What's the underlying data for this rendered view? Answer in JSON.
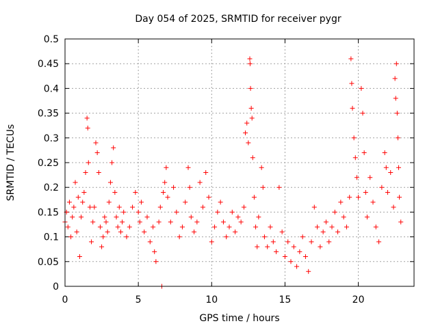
{
  "chart_data": {
    "type": "scatter",
    "title": "Day 054 of 2025, SRMTID for receiver pygr",
    "xlabel": "GPS time / hours",
    "ylabel": "SRMTID / TECUs",
    "xlim": [
      0,
      23.8
    ],
    "ylim": [
      0,
      0.5
    ],
    "xticks": [
      0,
      5,
      10,
      15,
      20
    ],
    "xtick_labels": [
      "0",
      "5",
      "10",
      "15",
      "20"
    ],
    "yticks": [
      0,
      0.05,
      0.1,
      0.15,
      0.2,
      0.25,
      0.3,
      0.35,
      0.4,
      0.45,
      0.5
    ],
    "ytick_labels": [
      "0",
      "0.05",
      "0.1",
      "0.15",
      "0.2",
      "0.25",
      "0.3",
      "0.35",
      "0.4",
      "0.45",
      "0.5"
    ],
    "grid": true,
    "marker": "+",
    "series": [
      {
        "name": "SRMTID",
        "color": "#ff0000",
        "points": [
          [
            0.0,
            0.13
          ],
          [
            0.1,
            0.15
          ],
          [
            0.2,
            0.12
          ],
          [
            0.3,
            0.17
          ],
          [
            0.4,
            0.1
          ],
          [
            0.5,
            0.14
          ],
          [
            0.6,
            0.16
          ],
          [
            0.7,
            0.21
          ],
          [
            0.8,
            0.11
          ],
          [
            0.9,
            0.18
          ],
          [
            1.0,
            0.06
          ],
          [
            1.1,
            0.14
          ],
          [
            1.2,
            0.17
          ],
          [
            1.3,
            0.19
          ],
          [
            1.4,
            0.23
          ],
          [
            1.5,
            0.34
          ],
          [
            1.55,
            0.32
          ],
          [
            1.6,
            0.25
          ],
          [
            1.7,
            0.16
          ],
          [
            1.8,
            0.09
          ],
          [
            1.9,
            0.13
          ],
          [
            2.0,
            0.16
          ],
          [
            2.1,
            0.29
          ],
          [
            2.2,
            0.27
          ],
          [
            2.3,
            0.23
          ],
          [
            2.4,
            0.12
          ],
          [
            2.5,
            0.08
          ],
          [
            2.6,
            0.1
          ],
          [
            2.7,
            0.14
          ],
          [
            2.8,
            0.13
          ],
          [
            2.9,
            0.11
          ],
          [
            3.0,
            0.17
          ],
          [
            3.1,
            0.21
          ],
          [
            3.2,
            0.25
          ],
          [
            3.3,
            0.28
          ],
          [
            3.4,
            0.19
          ],
          [
            3.5,
            0.14
          ],
          [
            3.6,
            0.12
          ],
          [
            3.7,
            0.16
          ],
          [
            3.8,
            0.11
          ],
          [
            3.9,
            0.13
          ],
          [
            4.0,
            0.15
          ],
          [
            4.2,
            0.1
          ],
          [
            4.4,
            0.12
          ],
          [
            4.6,
            0.16
          ],
          [
            4.8,
            0.19
          ],
          [
            5.0,
            0.15
          ],
          [
            5.1,
            0.13
          ],
          [
            5.2,
            0.17
          ],
          [
            5.4,
            0.11
          ],
          [
            5.6,
            0.14
          ],
          [
            5.8,
            0.09
          ],
          [
            6.0,
            0.12
          ],
          [
            6.1,
            0.07
          ],
          [
            6.2,
            0.05
          ],
          [
            6.4,
            0.13
          ],
          [
            6.5,
            0.16
          ],
          [
            6.6,
            0.0
          ],
          [
            6.7,
            0.19
          ],
          [
            6.8,
            0.21
          ],
          [
            6.9,
            0.24
          ],
          [
            7.0,
            0.18
          ],
          [
            7.2,
            0.13
          ],
          [
            7.4,
            0.2
          ],
          [
            7.6,
            0.15
          ],
          [
            7.8,
            0.1
          ],
          [
            8.0,
            0.12
          ],
          [
            8.2,
            0.17
          ],
          [
            8.4,
            0.24
          ],
          [
            8.5,
            0.2
          ],
          [
            8.6,
            0.14
          ],
          [
            8.8,
            0.11
          ],
          [
            9.0,
            0.13
          ],
          [
            9.2,
            0.21
          ],
          [
            9.4,
            0.16
          ],
          [
            9.6,
            0.23
          ],
          [
            9.8,
            0.18
          ],
          [
            10.0,
            0.09
          ],
          [
            10.2,
            0.12
          ],
          [
            10.4,
            0.15
          ],
          [
            10.6,
            0.17
          ],
          [
            10.8,
            0.13
          ],
          [
            11.0,
            0.1
          ],
          [
            11.2,
            0.12
          ],
          [
            11.4,
            0.15
          ],
          [
            11.6,
            0.11
          ],
          [
            11.8,
            0.14
          ],
          [
            12.0,
            0.13
          ],
          [
            12.2,
            0.16
          ],
          [
            12.3,
            0.31
          ],
          [
            12.4,
            0.33
          ],
          [
            12.5,
            0.29
          ],
          [
            12.6,
            0.46
          ],
          [
            12.62,
            0.45
          ],
          [
            12.65,
            0.4
          ],
          [
            12.7,
            0.36
          ],
          [
            12.75,
            0.34
          ],
          [
            12.8,
            0.26
          ],
          [
            12.9,
            0.18
          ],
          [
            13.0,
            0.12
          ],
          [
            13.1,
            0.08
          ],
          [
            13.2,
            0.14
          ],
          [
            13.4,
            0.24
          ],
          [
            13.5,
            0.2
          ],
          [
            13.6,
            0.1
          ],
          [
            13.8,
            0.08
          ],
          [
            14.0,
            0.12
          ],
          [
            14.2,
            0.09
          ],
          [
            14.4,
            0.07
          ],
          [
            14.6,
            0.2
          ],
          [
            14.8,
            0.11
          ],
          [
            15.0,
            0.06
          ],
          [
            15.2,
            0.09
          ],
          [
            15.4,
            0.05
          ],
          [
            15.6,
            0.08
          ],
          [
            15.8,
            0.04
          ],
          [
            16.0,
            0.07
          ],
          [
            16.2,
            0.1
          ],
          [
            16.4,
            0.06
          ],
          [
            16.6,
            0.03
          ],
          [
            16.8,
            0.09
          ],
          [
            17.0,
            0.16
          ],
          [
            17.2,
            0.12
          ],
          [
            17.4,
            0.08
          ],
          [
            17.6,
            0.11
          ],
          [
            17.8,
            0.13
          ],
          [
            18.0,
            0.09
          ],
          [
            18.2,
            0.12
          ],
          [
            18.4,
            0.15
          ],
          [
            18.6,
            0.11
          ],
          [
            18.8,
            0.17
          ],
          [
            19.0,
            0.14
          ],
          [
            19.2,
            0.12
          ],
          [
            19.4,
            0.18
          ],
          [
            19.5,
            0.46
          ],
          [
            19.55,
            0.41
          ],
          [
            19.6,
            0.36
          ],
          [
            19.7,
            0.3
          ],
          [
            19.8,
            0.26
          ],
          [
            19.9,
            0.22
          ],
          [
            20.0,
            0.18
          ],
          [
            20.2,
            0.4
          ],
          [
            20.3,
            0.35
          ],
          [
            20.4,
            0.27
          ],
          [
            20.5,
            0.19
          ],
          [
            20.6,
            0.14
          ],
          [
            20.8,
            0.22
          ],
          [
            21.0,
            0.17
          ],
          [
            21.2,
            0.12
          ],
          [
            21.4,
            0.09
          ],
          [
            21.6,
            0.2
          ],
          [
            21.8,
            0.27
          ],
          [
            21.9,
            0.24
          ],
          [
            22.0,
            0.19
          ],
          [
            22.2,
            0.23
          ],
          [
            22.4,
            0.16
          ],
          [
            22.5,
            0.42
          ],
          [
            22.55,
            0.38
          ],
          [
            22.6,
            0.45
          ],
          [
            22.65,
            0.35
          ],
          [
            22.7,
            0.3
          ],
          [
            22.75,
            0.24
          ],
          [
            22.8,
            0.18
          ],
          [
            22.9,
            0.13
          ]
        ]
      }
    ]
  }
}
